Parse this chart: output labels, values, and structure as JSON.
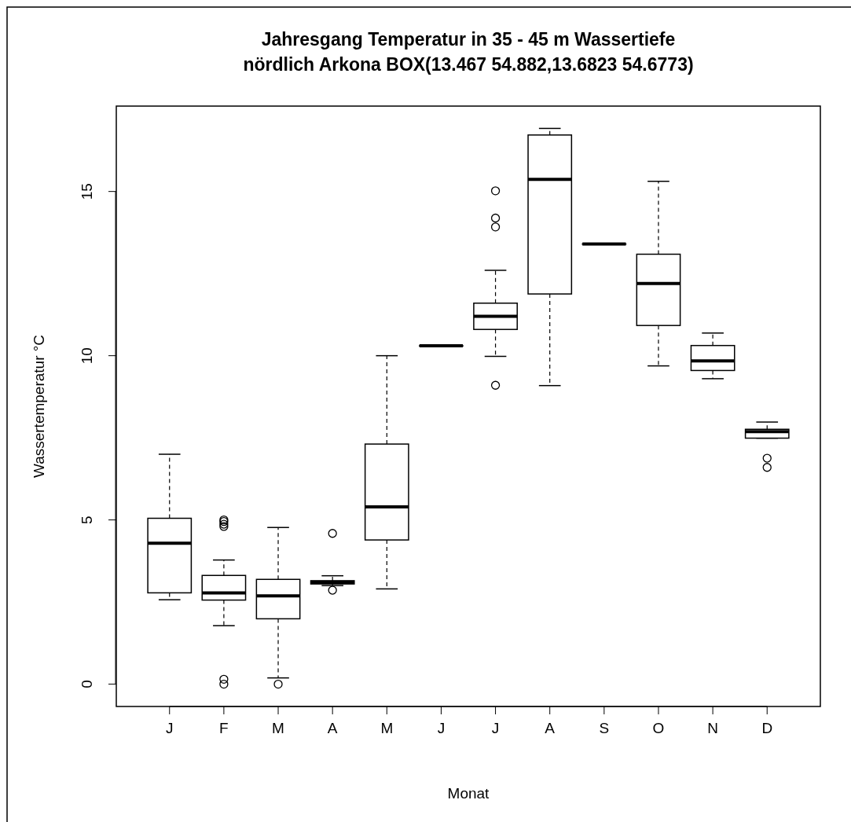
{
  "chart_data": {
    "type": "box",
    "title": "Jahresgang Temperatur in 35 - 45 m Wassertiefe\nnördlich Arkona BOX(13.467 54.882,13.6823 54.6773)",
    "xlabel": "Monat",
    "ylabel": "Wassertemperatur °C",
    "categories": [
      "J",
      "F",
      "M",
      "A",
      "M",
      "J",
      "J",
      "A",
      "S",
      "O",
      "N",
      "D"
    ],
    "ylim": [
      -0.68,
      17.6
    ],
    "yticks": [
      0,
      5,
      10,
      15
    ],
    "grid": false,
    "boxes": [
      {
        "low": 2.57,
        "q1": 2.78,
        "median": 4.29,
        "q3": 5.05,
        "high": 7.0
      },
      {
        "low": 1.78,
        "q1": 2.56,
        "median": 2.78,
        "q3": 3.31,
        "high": 3.78,
        "outliers": [
          0,
          0.15,
          4.8,
          4.87,
          4.95,
          5.0
        ]
      },
      {
        "low": 0.19,
        "q1": 1.99,
        "median": 2.69,
        "q3": 3.19,
        "high": 4.77,
        "outliers": [
          0
        ]
      },
      {
        "low": 3.0,
        "q1": 3.05,
        "median": 3.1,
        "q3": 3.15,
        "high": 3.3,
        "outliers": [
          2.86,
          4.59
        ]
      },
      {
        "low": 2.9,
        "q1": 4.39,
        "median": 5.4,
        "q3": 7.31,
        "high": 10.0
      },
      {
        "low": 10.3,
        "q1": 10.3,
        "median": 10.3,
        "q3": 10.3,
        "high": 10.3
      },
      {
        "low": 9.98,
        "q1": 10.8,
        "median": 11.2,
        "q3": 11.6,
        "high": 12.6,
        "outliers": [
          9.1,
          13.92,
          14.19,
          15.02
        ]
      },
      {
        "low": 9.09,
        "q1": 11.88,
        "median": 15.37,
        "q3": 16.72,
        "high": 16.92
      },
      {
        "low": 13.4,
        "q1": 13.4,
        "median": 13.4,
        "q3": 13.4,
        "high": 13.4
      },
      {
        "low": 9.69,
        "q1": 10.92,
        "median": 12.2,
        "q3": 13.09,
        "high": 15.31
      },
      {
        "low": 9.3,
        "q1": 9.55,
        "median": 9.84,
        "q3": 10.31,
        "high": 10.69
      },
      {
        "low": 7.49,
        "q1": 7.49,
        "median": 7.69,
        "q3": 7.76,
        "high": 7.98,
        "outliers": [
          6.6,
          6.88
        ]
      }
    ]
  }
}
